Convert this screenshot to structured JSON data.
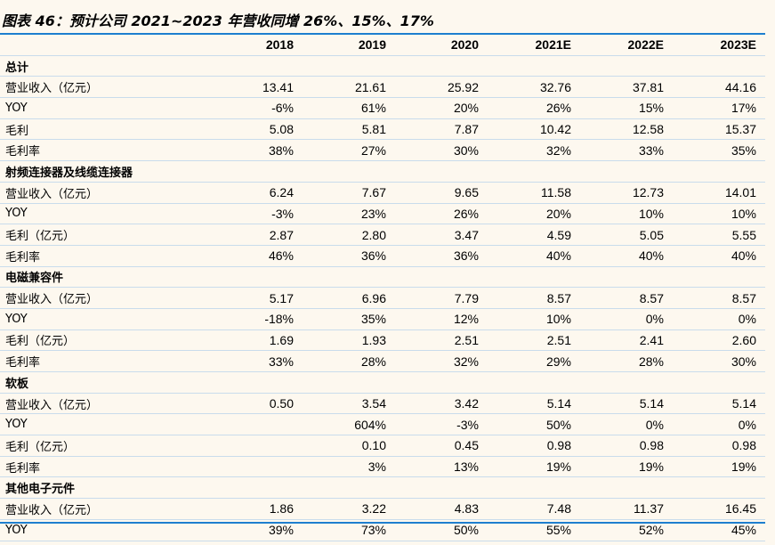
{
  "title": "图表 46：预计公司 2021~2023 年营收同增 26%、15%、17%",
  "columns": [
    "",
    "2018",
    "2019",
    "2020",
    "2021E",
    "2022E",
    "2023E"
  ],
  "rows": [
    {
      "section": "总计"
    },
    {
      "label": "营业收入（亿元）",
      "values": [
        "13.41",
        "21.61",
        "25.92",
        "32.76",
        "37.81",
        "44.16"
      ]
    },
    {
      "label": "YOY",
      "values": [
        "-6%",
        "61%",
        "20%",
        "26%",
        "15%",
        "17%"
      ]
    },
    {
      "label": "毛利",
      "values": [
        "5.08",
        "5.81",
        "7.87",
        "10.42",
        "12.58",
        "15.37"
      ]
    },
    {
      "label": "毛利率",
      "values": [
        "38%",
        "27%",
        "30%",
        "32%",
        "33%",
        "35%"
      ]
    },
    {
      "section": "射频连接器及线缆连接器"
    },
    {
      "label": "营业收入（亿元）",
      "values": [
        "6.24",
        "7.67",
        "9.65",
        "11.58",
        "12.73",
        "14.01"
      ]
    },
    {
      "label": "YOY",
      "values": [
        "-3%",
        "23%",
        "26%",
        "20%",
        "10%",
        "10%"
      ]
    },
    {
      "label": "毛利（亿元）",
      "values": [
        "2.87",
        "2.80",
        "3.47",
        "4.59",
        "5.05",
        "5.55"
      ]
    },
    {
      "label": "毛利率",
      "values": [
        "46%",
        "36%",
        "36%",
        "40%",
        "40%",
        "40%"
      ]
    },
    {
      "section": "电磁兼容件"
    },
    {
      "label": "营业收入（亿元）",
      "values": [
        "5.17",
        "6.96",
        "7.79",
        "8.57",
        "8.57",
        "8.57"
      ]
    },
    {
      "label": "YOY",
      "values": [
        "-18%",
        "35%",
        "12%",
        "10%",
        "0%",
        "0%"
      ]
    },
    {
      "label": "毛利（亿元）",
      "values": [
        "1.69",
        "1.93",
        "2.51",
        "2.51",
        "2.41",
        "2.60"
      ]
    },
    {
      "label": "毛利率",
      "values": [
        "33%",
        "28%",
        "32%",
        "29%",
        "28%",
        "30%"
      ]
    },
    {
      "section": "软板"
    },
    {
      "label": "营业收入（亿元）",
      "values": [
        "0.50",
        "3.54",
        "3.42",
        "5.14",
        "5.14",
        "5.14"
      ]
    },
    {
      "label": "YOY",
      "values": [
        "",
        "604%",
        "-3%",
        "50%",
        "0%",
        "0%"
      ]
    },
    {
      "label": "毛利（亿元）",
      "values": [
        "",
        "0.10",
        "0.45",
        "0.98",
        "0.98",
        "0.98"
      ]
    },
    {
      "label": "毛利率",
      "values": [
        "",
        "3%",
        "13%",
        "19%",
        "19%",
        "19%"
      ]
    },
    {
      "section": "其他电子元件"
    },
    {
      "label": "营业收入（亿元）",
      "values": [
        "1.86",
        "3.22",
        "4.83",
        "7.48",
        "11.37",
        "16.45"
      ]
    },
    {
      "label": "YOY",
      "values": [
        "39%",
        "73%",
        "50%",
        "55%",
        "52%",
        "45%"
      ]
    }
  ]
}
